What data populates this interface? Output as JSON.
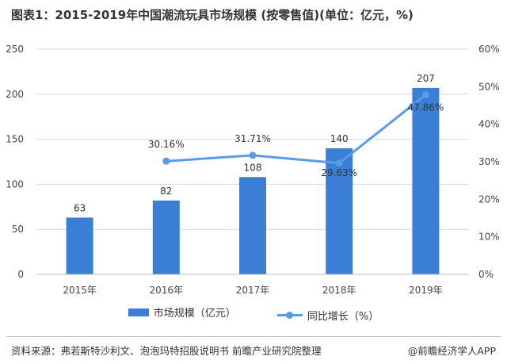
{
  "title": "图表1：2015-2019年中国潮流玩具市场规模 (按零售值)(单位：亿元，%)",
  "source": "资料来源：弗若斯特沙利文、泡泡玛特招股说明书 前瞻产业研究院整理",
  "brand": "@前瞻经济学人APP",
  "colors": {
    "bar": "#3a7fd5",
    "line": "#5b9be6",
    "grid": "#d9d9d9",
    "axis_text": "#444444"
  },
  "chart_data": {
    "type": "bar",
    "categories": [
      "2015年",
      "2016年",
      "2017年",
      "2018年",
      "2019年"
    ],
    "series": [
      {
        "name": "市场规模（亿元）",
        "type": "bar",
        "axis": "left",
        "values": [
          63,
          82,
          108,
          140,
          207
        ],
        "labels": [
          "63",
          "82",
          "108",
          "140",
          "207"
        ]
      },
      {
        "name": "同比增长（%）",
        "type": "line",
        "axis": "right",
        "values": [
          null,
          30.16,
          31.71,
          29.63,
          47.86
        ],
        "labels": [
          "",
          "30.16%",
          "31.71%",
          "29.63%",
          "47.86%"
        ]
      }
    ],
    "yleft": {
      "min": 0,
      "max": 250,
      "ticks": [
        "0",
        "50",
        "100",
        "150",
        "200",
        "250"
      ]
    },
    "yright": {
      "min": 0,
      "max": 60,
      "ticks": [
        "0%",
        "10%",
        "20%",
        "30%",
        "40%",
        "50%",
        "60%"
      ]
    },
    "grid": true,
    "legend_position": "bottom"
  }
}
